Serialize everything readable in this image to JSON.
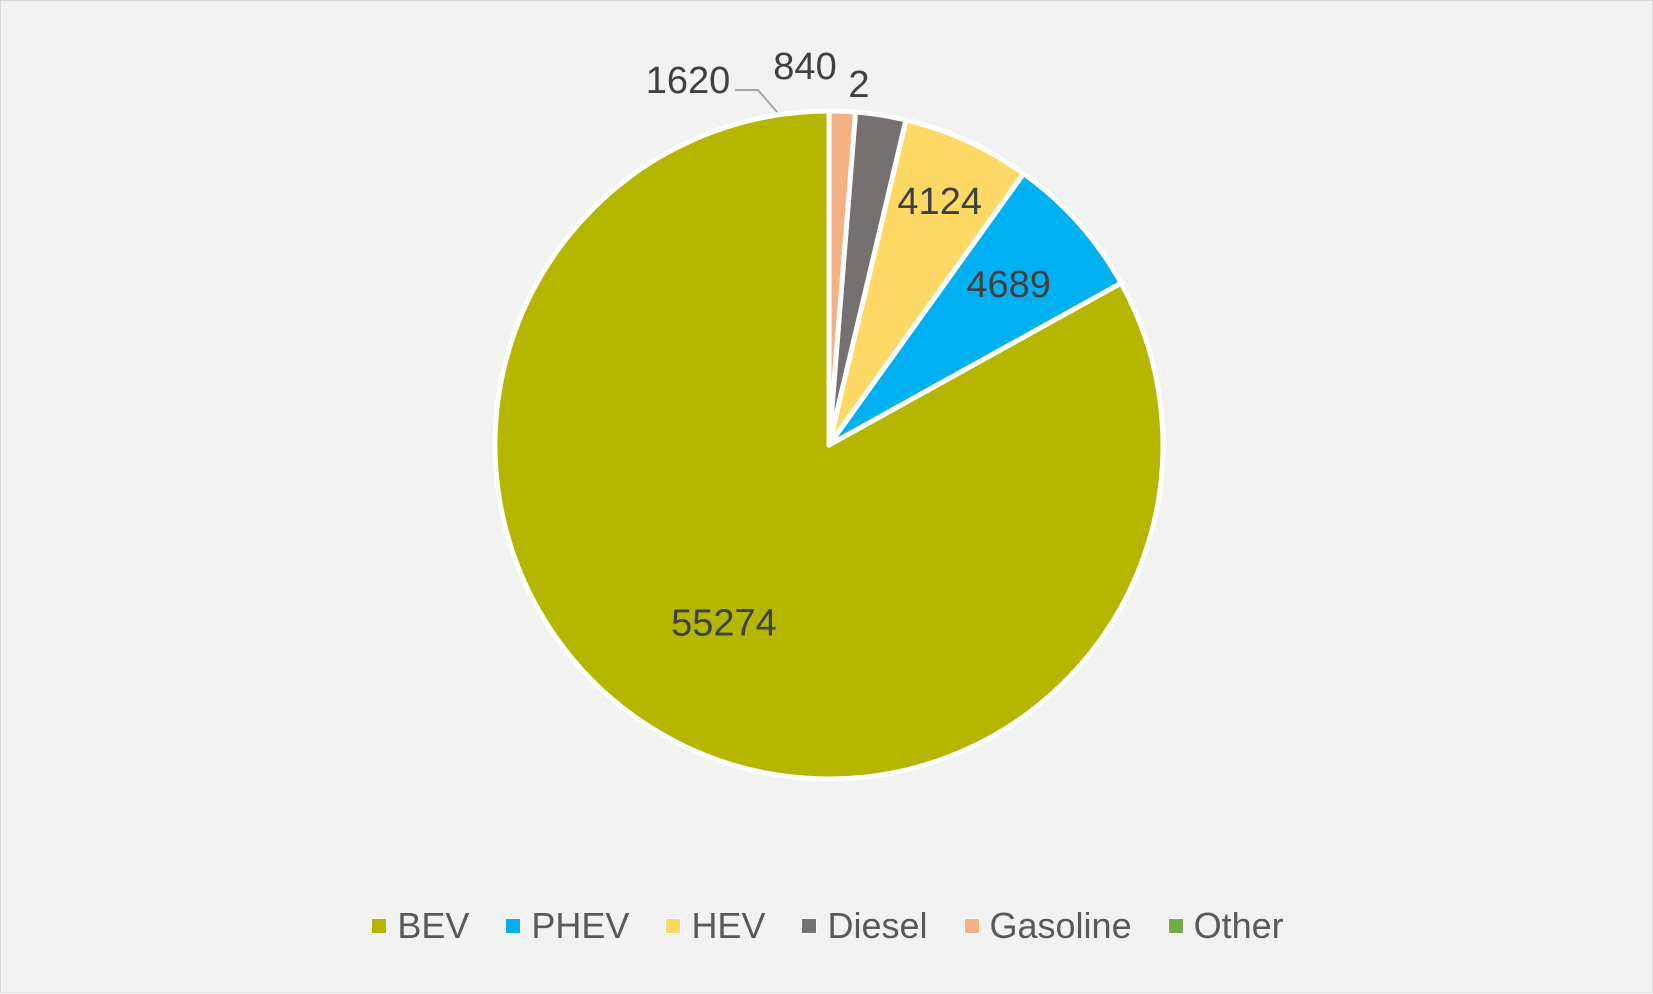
{
  "chart_data": {
    "type": "pie",
    "title": "",
    "categories": [
      "BEV",
      "PHEV",
      "HEV",
      "Diesel",
      "Gasoline",
      "Other"
    ],
    "values": [
      55274,
      4689,
      4124,
      1620,
      840,
      2
    ],
    "labels": [
      "55274",
      "4689",
      "4124",
      "1620",
      "840",
      "2"
    ],
    "colors": [
      "#b5b600",
      "#00b0f0",
      "#ffd966",
      "#767171",
      "#f4b183",
      "#70ad47"
    ],
    "start_angle": "12 o'clock",
    "direction": "counter-clockwise",
    "legend_position": "bottom"
  }
}
